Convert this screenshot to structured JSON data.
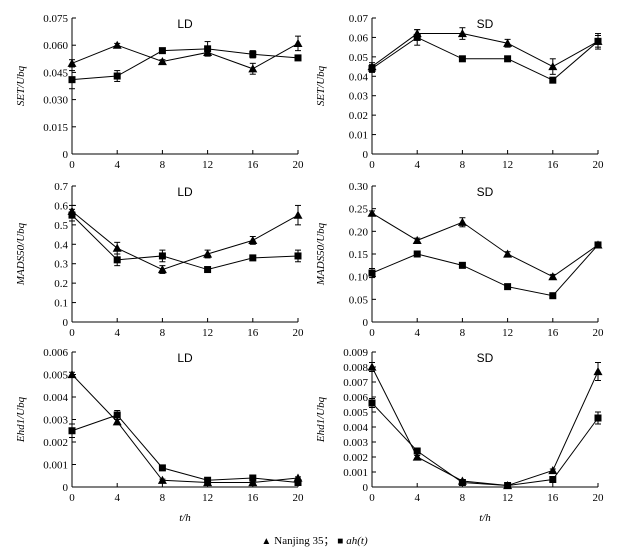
{
  "legend": {
    "series1_marker": "▲",
    "series1_label": "Nanjing 35",
    "separator": "；",
    "series2_marker": "■",
    "series2_label": "ah(t)"
  },
  "chart_data": [
    {
      "type": "line",
      "title": "LD",
      "ylabel": "SET/Ubq",
      "xlabel": "",
      "x": [
        0,
        4,
        8,
        12,
        16,
        20
      ],
      "ylim": [
        0,
        0.075
      ],
      "yticks": [
        "0",
        "0.015",
        "0.030",
        "0.045",
        "0.060",
        "0.075"
      ],
      "series": [
        {
          "name": "Nanjing 35",
          "marker": "triangle",
          "values": [
            0.05,
            0.06,
            0.051,
            0.056,
            0.047,
            0.061
          ],
          "errors": [
            0.002,
            0.001,
            0.001,
            0.002,
            0.003,
            0.004
          ]
        },
        {
          "name": "ah(t)",
          "marker": "square",
          "values": [
            0.041,
            0.043,
            0.057,
            0.058,
            0.055,
            0.053
          ],
          "errors": [
            0.005,
            0.003,
            0.001,
            0.004,
            0.002,
            0.001
          ]
        }
      ]
    },
    {
      "type": "line",
      "title": "SD",
      "ylabel": "SET/Ubq",
      "xlabel": "",
      "x": [
        0,
        4,
        8,
        12,
        16,
        20
      ],
      "ylim": [
        0,
        0.07
      ],
      "yticks": [
        "0",
        "0.01",
        "0.02",
        "0.03",
        "0.04",
        "0.05",
        "0.06",
        "0.07"
      ],
      "series": [
        {
          "name": "Nanjing 35",
          "marker": "triangle",
          "values": [
            0.045,
            0.062,
            0.062,
            0.057,
            0.045,
            0.058
          ],
          "errors": [
            0.002,
            0.002,
            0.003,
            0.002,
            0.004,
            0.003
          ]
        },
        {
          "name": "ah(t)",
          "marker": "square",
          "values": [
            0.044,
            0.06,
            0.049,
            0.049,
            0.038,
            0.058
          ],
          "errors": [
            0.002,
            0.004,
            0.001,
            0.001,
            0.001,
            0.004
          ]
        }
      ]
    },
    {
      "type": "line",
      "title": "LD",
      "ylabel": "MADS50/Ubq",
      "xlabel": "",
      "x": [
        0,
        4,
        8,
        12,
        16,
        20
      ],
      "ylim": [
        0,
        0.7
      ],
      "yticks": [
        "0",
        "0.1",
        "0.2",
        "0.3",
        "0.4",
        "0.5",
        "0.6",
        "0.7"
      ],
      "series": [
        {
          "name": "Nanjing 35",
          "marker": "triangle",
          "values": [
            0.57,
            0.38,
            0.27,
            0.35,
            0.42,
            0.55
          ],
          "errors": [
            0.03,
            0.03,
            0.02,
            0.02,
            0.02,
            0.05
          ]
        },
        {
          "name": "ah(t)",
          "marker": "square",
          "values": [
            0.55,
            0.32,
            0.34,
            0.27,
            0.33,
            0.34
          ],
          "errors": [
            0.03,
            0.03,
            0.03,
            0.01,
            0.01,
            0.03
          ]
        }
      ]
    },
    {
      "type": "line",
      "title": "SD",
      "ylabel": "MADS50/Ubq",
      "xlabel": "",
      "x": [
        0,
        4,
        8,
        12,
        16,
        20
      ],
      "ylim": [
        0,
        0.3
      ],
      "yticks": [
        "0",
        "0.05",
        "0.10",
        "0.15",
        "0.20",
        "0.25",
        "0.30"
      ],
      "series": [
        {
          "name": "Nanjing 35",
          "marker": "triangle",
          "values": [
            0.24,
            0.18,
            0.22,
            0.15,
            0.1,
            0.17
          ],
          "errors": [
            0.005,
            0.005,
            0.01,
            0.005,
            0.005,
            0.005
          ]
        },
        {
          "name": "ah(t)",
          "marker": "square",
          "values": [
            0.108,
            0.15,
            0.125,
            0.078,
            0.058,
            0.17
          ],
          "errors": [
            0.01,
            0.005,
            0.005,
            0.003,
            0.003,
            0.005
          ]
        }
      ]
    },
    {
      "type": "line",
      "title": "LD",
      "ylabel": "Ehd1/Ubq",
      "xlabel": "t/h",
      "x": [
        0,
        4,
        8,
        12,
        16,
        20
      ],
      "ylim": [
        0,
        0.006
      ],
      "yticks": [
        "0",
        "0.001",
        "0.002",
        "0.003",
        "0.004",
        "0.005",
        "0.006"
      ],
      "series": [
        {
          "name": "Nanjing 35",
          "marker": "triangle",
          "values": [
            0.005,
            0.0029,
            0.0003,
            0.0002,
            0.0002,
            0.0004
          ],
          "errors": [
            0.0001,
            0.0001,
            5e-05,
            5e-05,
            5e-05,
            5e-05
          ]
        },
        {
          "name": "ah(t)",
          "marker": "square",
          "values": [
            0.0025,
            0.0032,
            0.00085,
            0.0003,
            0.0004,
            0.0002
          ],
          "errors": [
            0.0003,
            0.0002,
            5e-05,
            5e-05,
            5e-05,
            5e-05
          ]
        }
      ]
    },
    {
      "type": "line",
      "title": "SD",
      "ylabel": "Ehd1/Ubq",
      "xlabel": "t/h",
      "x": [
        0,
        4,
        8,
        12,
        16,
        20
      ],
      "ylim": [
        0,
        0.009
      ],
      "yticks": [
        "0",
        "0.001",
        "0.002",
        "0.003",
        "0.004",
        "0.005",
        "0.006",
        "0.007",
        "0.008",
        "0.009"
      ],
      "series": [
        {
          "name": "Nanjing 35",
          "marker": "triangle",
          "values": [
            0.008,
            0.002,
            0.0004,
            0.0001,
            0.0011,
            0.0077
          ],
          "errors": [
            0.0003,
            0.0001,
            5e-05,
            5e-05,
            0.0001,
            0.0006
          ]
        },
        {
          "name": "ah(t)",
          "marker": "square",
          "values": [
            0.0056,
            0.0024,
            0.0003,
            0.0001,
            0.0005,
            0.0046
          ],
          "errors": [
            0.0003,
            0.0001,
            5e-05,
            5e-05,
            5e-05,
            0.0004
          ]
        }
      ]
    }
  ]
}
